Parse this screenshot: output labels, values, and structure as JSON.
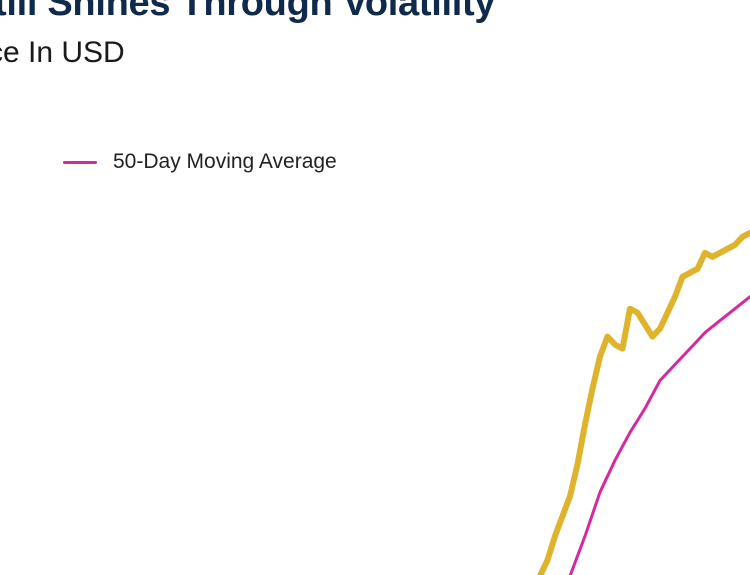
{
  "title": "till Shines Through Volatility",
  "subtitle": "ce In USD",
  "chart_data": {
    "type": "line",
    "title": "till Shines Through Volatility",
    "subtitle": "ce In USD",
    "legend_position": "top-left",
    "grid": false,
    "xlim": [
      0,
      100
    ],
    "ylim": [
      0,
      100
    ],
    "series": [
      {
        "name": "",
        "color": "#e0b32c",
        "x": [
          72,
          73,
          74,
          75,
          76,
          77,
          78,
          79,
          80,
          81,
          82,
          83,
          84,
          85,
          86,
          87,
          88,
          89,
          90,
          91,
          92,
          93,
          94,
          95,
          96,
          97,
          98,
          99,
          100
        ],
        "y": [
          0.0,
          2.0,
          5.0,
          7.5,
          10.0,
          14.0,
          19.0,
          23.5,
          27.5,
          30.0,
          29.0,
          28.5,
          33.5,
          33.0,
          31.5,
          30.0,
          31.0,
          33.0,
          35.0,
          37.5,
          38.0,
          38.5,
          40.5,
          40.0,
          40.5,
          41.0,
          41.5,
          42.5,
          43.0
        ]
      },
      {
        "name": "50-Day Moving Average",
        "color": "#d6299e",
        "x": [
          76,
          78,
          80,
          82,
          84,
          86,
          88,
          90,
          92,
          94,
          96,
          98,
          100
        ],
        "y": [
          0.0,
          5.0,
          10.5,
          14.5,
          18.0,
          21.0,
          24.5,
          26.5,
          28.5,
          30.5,
          32.0,
          33.5,
          35.0
        ]
      }
    ]
  }
}
